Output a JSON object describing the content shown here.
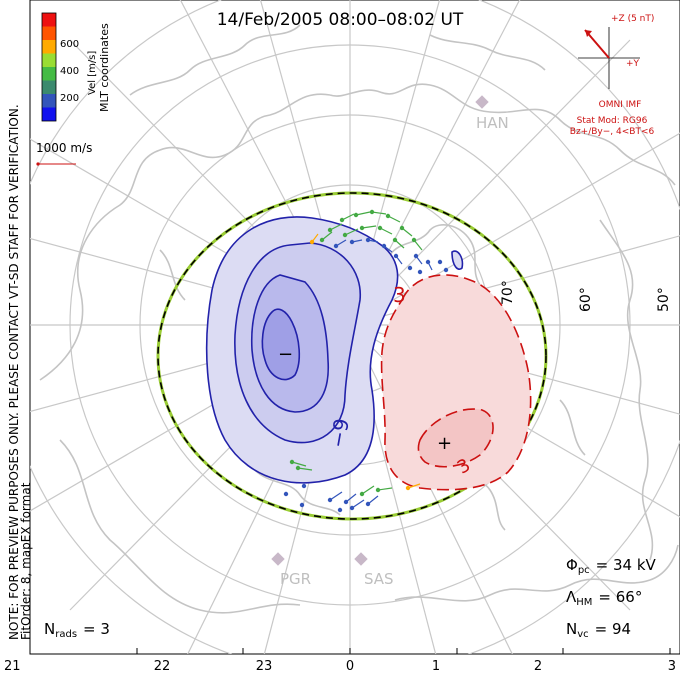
{
  "title": "14/Feb/2005 08:00–08:02 UT",
  "colorbar": {
    "label": "Vel [m/s]",
    "ticks": [
      "600",
      "400",
      "200"
    ],
    "colors": [
      "#ee1111",
      "#ff5500",
      "#ffaa00",
      "#99dd33",
      "#44bb44",
      "#3b8a6e",
      "#3355bb",
      "#1111ee"
    ]
  },
  "coordinates_label": "MLT coordinates",
  "scale_label": "1000 m/s",
  "imf": {
    "z_label": "+Z (5 nT)",
    "y_label": "+Y",
    "source": "OMNI IMF",
    "model_line1": "Stat Mod: RG96",
    "model_line2": "Bz+/By−, 4<BT<6"
  },
  "stations": [
    "HAN",
    "PGR",
    "SAS"
  ],
  "latitude_labels": [
    "70°",
    "60°",
    "50°"
  ],
  "mlt_labels": [
    "21",
    "22",
    "23",
    "0",
    "1",
    "2",
    "3"
  ],
  "contour_labels": {
    "neg": "−9",
    "pos_top": "3",
    "pos_bottom": "3"
  },
  "center_marks": {
    "min": "−",
    "max": "+"
  },
  "note_line1": "NOTE: FOR PREVIEW PURPOSES ONLY. PLEASE CONTACT VT-SD STAFF FOR VERIFICATION.",
  "note_line2": "FitOrder: 8, mapEX format",
  "stats": {
    "nrads_sym": "N",
    "nrads_sub": "rads",
    "nrads_value": "= 3",
    "phi_sym": "Φ",
    "phi_sub": "pc",
    "phi_value": "= 34 kV",
    "lambda_sym": "Λ",
    "lambda_sub": "HM",
    "lambda_value": "= 66°",
    "nvc_sym": "N",
    "nvc_sub": "vc",
    "nvc_value": "= 94"
  }
}
